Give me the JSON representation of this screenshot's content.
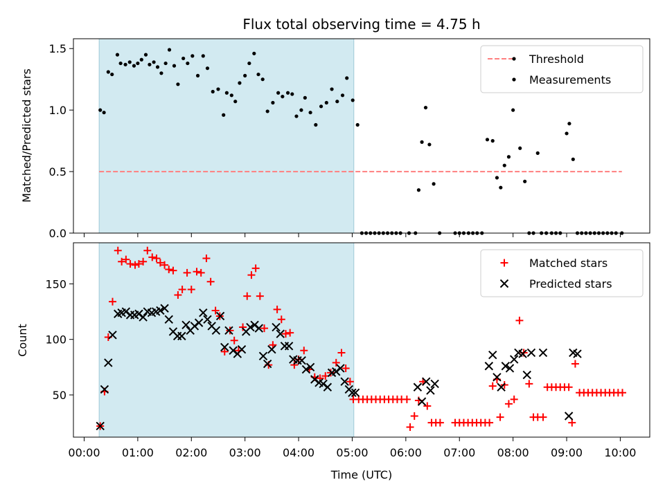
{
  "figure": {
    "title": "Flux total observing time = 4.75 h",
    "xlabel": "Time (UTC)"
  },
  "chart_data": [
    {
      "type": "scatter",
      "ylabel": "Matched/Predicted stars",
      "xlim": [
        -0.2,
        10.55
      ],
      "ylim": [
        0,
        1.58
      ],
      "yticks": [
        0.0,
        0.5,
        1.0,
        1.5
      ],
      "ytick_labels": [
        "0.0",
        "0.5",
        "1.0",
        "1.5"
      ],
      "shaded_span": {
        "x0": 0.28,
        "x1": 5.03,
        "color": "#add8e6"
      },
      "legend": {
        "placement": "top-right",
        "entries": [
          "Threshold",
          "Measurements"
        ]
      },
      "threshold": {
        "name": "Threshold",
        "y": 0.5,
        "x0": 0.28,
        "x1": 10.03,
        "color": "#ff7f7f",
        "style": "dashed"
      },
      "series": [
        {
          "name": "Measurements",
          "marker": "dot",
          "color": "#000000",
          "x": [
            0.3,
            0.37,
            0.45,
            0.52,
            0.62,
            0.68,
            0.77,
            0.85,
            0.93,
            1.0,
            1.07,
            1.15,
            1.22,
            1.3,
            1.37,
            1.44,
            1.52,
            1.59,
            1.68,
            1.75,
            1.85,
            1.93,
            2.02,
            2.12,
            2.22,
            2.3,
            2.4,
            2.5,
            2.6,
            2.66,
            2.75,
            2.82,
            2.9,
            3.0,
            3.08,
            3.17,
            3.25,
            3.33,
            3.42,
            3.52,
            3.62,
            3.7,
            3.8,
            3.88,
            3.96,
            4.05,
            4.12,
            4.22,
            4.32,
            4.42,
            4.52,
            4.62,
            4.72,
            4.82,
            4.9,
            5.01,
            5.1,
            5.18,
            5.26,
            5.34,
            5.42,
            5.5,
            5.58,
            5.66,
            5.74,
            5.82,
            5.9,
            6.06,
            6.18,
            6.24,
            6.3,
            6.37,
            6.44,
            6.52,
            6.63,
            6.92,
            7.0,
            7.08,
            7.17,
            7.25,
            7.33,
            7.42,
            7.52,
            7.62,
            7.7,
            7.77,
            7.84,
            7.92,
            8.0,
            8.13,
            8.22,
            8.3,
            8.38,
            8.46,
            8.53,
            8.62,
            8.72,
            8.8,
            8.88,
            9.0,
            9.05,
            9.12,
            9.2,
            9.28,
            9.36,
            9.44,
            9.52,
            9.6,
            9.68,
            9.76,
            9.84,
            9.92,
            10.03
          ],
          "y": [
            1.0,
            0.98,
            1.31,
            1.29,
            1.45,
            1.38,
            1.37,
            1.39,
            1.36,
            1.38,
            1.41,
            1.45,
            1.37,
            1.39,
            1.35,
            1.3,
            1.38,
            1.49,
            1.36,
            1.21,
            1.42,
            1.38,
            1.44,
            1.28,
            1.44,
            1.34,
            1.15,
            1.17,
            0.96,
            1.14,
            1.12,
            1.07,
            1.22,
            1.28,
            1.38,
            1.46,
            1.29,
            1.25,
            0.99,
            1.06,
            1.14,
            1.11,
            1.14,
            1.13,
            0.95,
            1.0,
            1.1,
            0.98,
            0.88,
            1.03,
            1.06,
            1.17,
            1.07,
            1.12,
            1.26,
            1.08,
            0.88,
            0.0,
            0.0,
            0.0,
            0.0,
            0.0,
            0.0,
            0.0,
            0.0,
            0.0,
            0.0,
            0.0,
            0.0,
            0.35,
            0.74,
            1.02,
            0.72,
            0.4,
            0.0,
            0.0,
            0.0,
            0.0,
            0.0,
            0.0,
            0.0,
            0.0,
            0.76,
            0.75,
            0.45,
            0.37,
            0.55,
            0.62,
            1.0,
            0.69,
            0.42,
            0.0,
            0.0,
            0.65,
            0.0,
            0.0,
            0.0,
            0.0,
            0.0,
            0.81,
            0.89,
            0.6,
            0.0,
            0.0,
            0.0,
            0.0,
            0.0,
            0.0,
            0.0,
            0.0,
            0.0,
            0.0,
            0.0
          ]
        }
      ]
    },
    {
      "type": "scatter",
      "ylabel": "Count",
      "xlim": [
        -0.2,
        10.55
      ],
      "ylim": [
        12,
        187
      ],
      "yticks": [
        50,
        100,
        150
      ],
      "ytick_labels": [
        "50",
        "100",
        "150"
      ],
      "xticks": [
        0,
        1,
        2,
        3,
        4,
        5,
        6,
        7,
        8,
        9,
        10
      ],
      "xtick_labels": [
        "00:00",
        "01:00",
        "02:00",
        "03:00",
        "04:00",
        "05:00",
        "06:00",
        "07:00",
        "08:00",
        "09:00",
        "10:00"
      ],
      "shaded_span": {
        "x0": 0.28,
        "x1": 5.03,
        "color": "#add8e6"
      },
      "legend": {
        "placement": "top-right",
        "entries": [
          "Matched stars",
          "Predicted stars"
        ]
      },
      "series": [
        {
          "name": "Matched stars",
          "marker": "plus",
          "color": "#ff0000",
          "x": [
            0.3,
            0.38,
            0.45,
            0.53,
            0.63,
            0.7,
            0.78,
            0.86,
            0.95,
            1.02,
            1.1,
            1.18,
            1.27,
            1.35,
            1.42,
            1.5,
            1.58,
            1.66,
            1.75,
            1.83,
            1.92,
            2.0,
            2.1,
            2.18,
            2.28,
            2.36,
            2.45,
            2.53,
            2.62,
            2.72,
            2.8,
            2.88,
            2.96,
            3.04,
            3.12,
            3.2,
            3.28,
            3.36,
            3.44,
            3.52,
            3.6,
            3.68,
            3.76,
            3.84,
            3.92,
            4.0,
            4.1,
            4.2,
            4.3,
            4.4,
            4.5,
            4.6,
            4.7,
            4.8,
            4.88,
            4.96,
            5.02,
            5.12,
            5.2,
            5.28,
            5.36,
            5.44,
            5.52,
            5.6,
            5.68,
            5.76,
            5.84,
            5.92,
            6.02,
            6.08,
            6.16,
            6.24,
            6.32,
            6.4,
            6.48,
            6.56,
            6.64,
            6.92,
            7.0,
            7.08,
            7.16,
            7.24,
            7.32,
            7.4,
            7.48,
            7.56,
            7.62,
            7.7,
            7.76,
            7.84,
            7.92,
            8.02,
            8.12,
            8.2,
            8.3,
            8.38,
            8.46,
            8.56,
            8.64,
            8.72,
            8.8,
            8.88,
            8.96,
            9.04,
            9.1,
            9.16,
            9.24,
            9.32,
            9.4,
            9.48,
            9.56,
            9.64,
            9.72,
            9.8,
            9.88,
            9.96,
            10.04
          ],
          "y": [
            22,
            53,
            102,
            134,
            180,
            170,
            172,
            168,
            167,
            168,
            170,
            180,
            174,
            173,
            169,
            167,
            163,
            162,
            140,
            145,
            160,
            145,
            161,
            160,
            173,
            152,
            126,
            121,
            89,
            108,
            99,
            90,
            111,
            139,
            158,
            164,
            139,
            110,
            77,
            95,
            127,
            118,
            105,
            106,
            77,
            82,
            90,
            73,
            66,
            65,
            67,
            70,
            79,
            88,
            74,
            62,
            46,
            46,
            46,
            46,
            46,
            46,
            46,
            46,
            46,
            46,
            46,
            46,
            46,
            21,
            31,
            45,
            62,
            40,
            25,
            25,
            25,
            25,
            25,
            25,
            25,
            25,
            25,
            25,
            25,
            25,
            58,
            64,
            30,
            59,
            42,
            46,
            117,
            88,
            60,
            30,
            30,
            30,
            57,
            57,
            57,
            57,
            57,
            57,
            25,
            78,
            52,
            52,
            52,
            52,
            52,
            52,
            52,
            52,
            52,
            52,
            52
          ]
        },
        {
          "name": "Predicted stars",
          "marker": "x",
          "color": "#000000",
          "x": [
            0.3,
            0.38,
            0.45,
            0.53,
            0.63,
            0.7,
            0.78,
            0.86,
            0.94,
            1.02,
            1.1,
            1.18,
            1.26,
            1.34,
            1.42,
            1.5,
            1.58,
            1.66,
            1.74,
            1.82,
            1.9,
            1.98,
            2.06,
            2.14,
            2.22,
            2.3,
            2.38,
            2.46,
            2.54,
            2.62,
            2.7,
            2.78,
            2.86,
            2.94,
            3.02,
            3.1,
            3.18,
            3.26,
            3.34,
            3.42,
            3.5,
            3.58,
            3.66,
            3.74,
            3.82,
            3.9,
            3.98,
            4.06,
            4.14,
            4.22,
            4.3,
            4.38,
            4.46,
            4.54,
            4.62,
            4.7,
            4.78,
            4.86,
            4.94,
            5.0,
            5.06,
            6.22,
            6.3,
            6.38,
            6.46,
            6.54,
            7.55,
            7.62,
            7.7,
            7.78,
            7.86,
            7.94,
            8.02,
            8.1,
            8.18,
            8.26,
            8.34,
            8.56,
            9.04,
            9.12,
            9.2
          ],
          "y": [
            22,
            55,
            79,
            104,
            123,
            124,
            125,
            122,
            122,
            123,
            120,
            125,
            124,
            125,
            126,
            128,
            118,
            107,
            103,
            103,
            113,
            108,
            112,
            115,
            124,
            118,
            112,
            108,
            121,
            93,
            108,
            90,
            87,
            91,
            107,
            111,
            113,
            110,
            85,
            78,
            91,
            111,
            105,
            94,
            94,
            82,
            81,
            81,
            73,
            75,
            64,
            61,
            60,
            57,
            70,
            71,
            74,
            62,
            55,
            52,
            52,
            57,
            44,
            62,
            54,
            60,
            76,
            86,
            66,
            57,
            76,
            74,
            82,
            88,
            87,
            68,
            88,
            88,
            31,
            88,
            87
          ]
        }
      ]
    }
  ]
}
